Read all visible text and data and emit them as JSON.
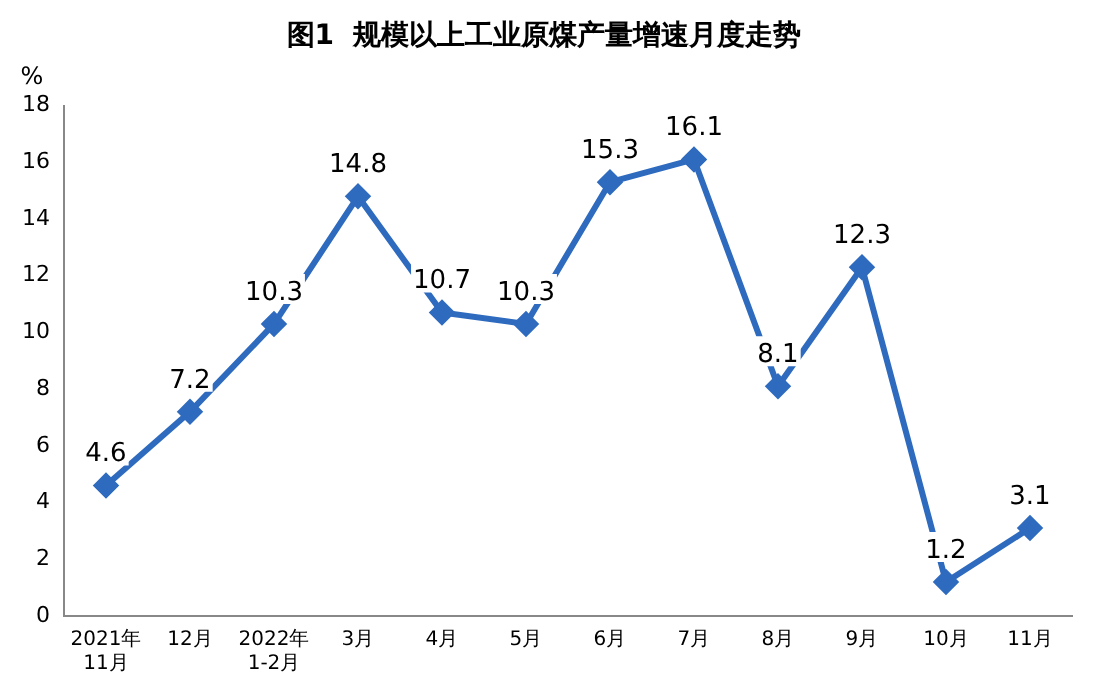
{
  "chart_data": {
    "type": "line",
    "title": "图1  规模以上工业原煤产量增速月度走势",
    "ylabel": "%",
    "categories": [
      "2021年\n11月",
      "12月",
      "2022年\n1-2月",
      "3月",
      "4月",
      "5月",
      "6月",
      "7月",
      "8月",
      "9月",
      "10月",
      "11月"
    ],
    "series": [
      {
        "color": "#2e6bbf",
        "values": [
          4.6,
          7.2,
          10.3,
          14.8,
          10.7,
          10.3,
          15.3,
          16.1,
          8.1,
          12.3,
          1.2,
          3.1
        ]
      }
    ],
    "ylim": [
      0,
      18
    ],
    "yticks": [
      0,
      2,
      4,
      6,
      8,
      10,
      12,
      14,
      16,
      18
    ],
    "grid": false,
    "legend": false,
    "marker": "diamond",
    "line_style": "solid",
    "data_labels": true
  }
}
